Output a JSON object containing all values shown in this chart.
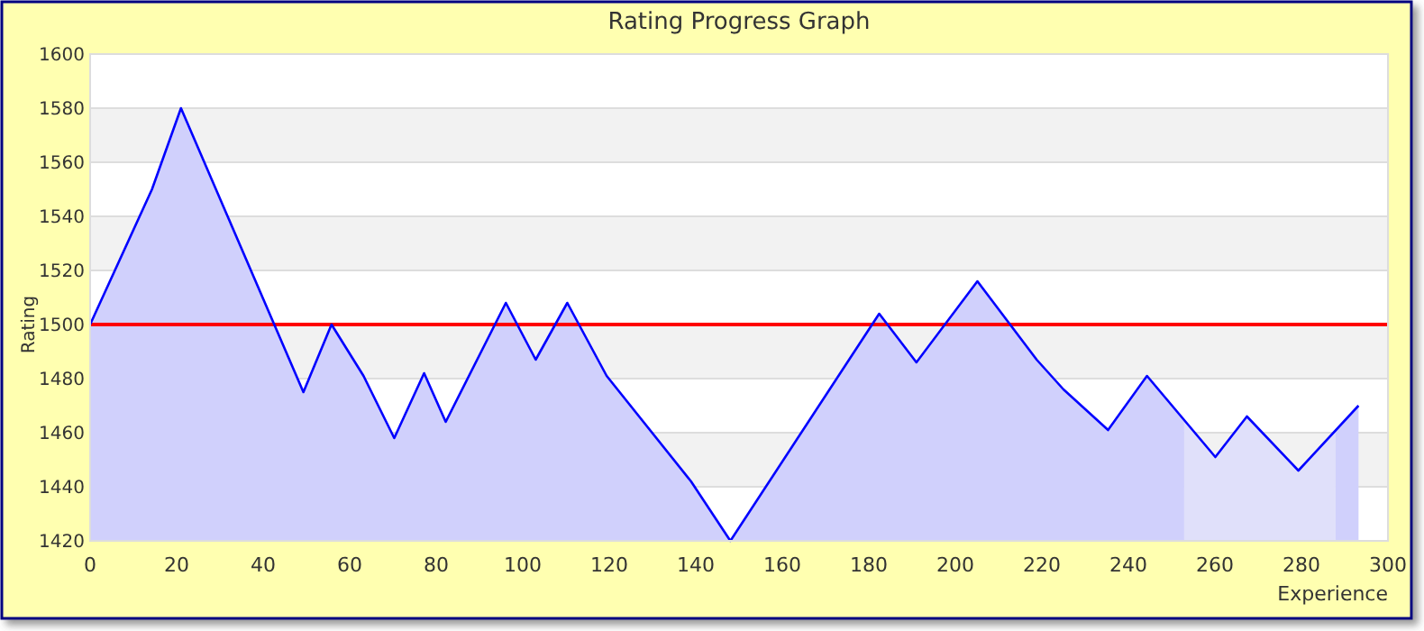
{
  "chart_data": {
    "type": "area",
    "title": "Rating Progress Graph",
    "xlabel": "Experience",
    "ylabel": "Rating",
    "xlim": [
      0,
      300
    ],
    "xticks": [
      0,
      20,
      40,
      60,
      80,
      100,
      120,
      140,
      160,
      180,
      200,
      220,
      240,
      260,
      280,
      300
    ],
    "ylim": [
      1420,
      1600
    ],
    "yticks": [
      1420,
      1440,
      1460,
      1480,
      1500,
      1520,
      1540,
      1560,
      1580,
      1600
    ],
    "grid": "y",
    "ref_lines": [
      {
        "axis": "y",
        "value": 1500,
        "color": "#ff0000"
      }
    ],
    "series": [
      {
        "color": "#d0d0fc",
        "x": [
          0,
          14.3,
          21,
          49.3,
          55.8,
          63.2,
          70.3,
          77.2,
          82.2,
          96.1,
          103,
          110.3,
          119.4,
          138.9,
          148,
          182.4,
          191,
          205.1,
          218.8,
          225,
          235.3,
          244.3,
          252.9
        ],
        "values": [
          1500,
          1550,
          1580,
          1475,
          1500,
          1481,
          1458,
          1482,
          1464,
          1508,
          1487,
          1508,
          1481,
          1442,
          1420,
          1504,
          1486,
          1516,
          1487,
          1476,
          1461,
          1481,
          1465
        ]
      },
      {
        "color": "#e0e0fa",
        "x": [
          252.9,
          260.1,
          267.4,
          279.3,
          287.9
        ],
        "values": [
          1465,
          1451,
          1466,
          1446,
          1461
        ]
      },
      {
        "color": "#d0d0fc",
        "x": [
          287.9,
          293.2
        ],
        "values": [
          1461,
          1470
        ]
      },
      {
        "type": "line",
        "color": "#0000ff",
        "x": [
          0,
          14.3,
          21,
          49.3,
          55.8,
          63.2,
          70.3,
          77.2,
          82.2,
          96.1,
          103,
          110.3,
          119.4,
          138.9,
          148,
          182.4,
          191,
          205.1,
          218.8,
          225,
          235.3,
          244.3,
          260.1,
          267.4,
          279.3,
          293.2
        ],
        "values": [
          1500,
          1550,
          1580,
          1475,
          1500,
          1481,
          1458,
          1482,
          1464,
          1508,
          1487,
          1508,
          1481,
          1442,
          1420,
          1504,
          1486,
          1516,
          1487,
          1476,
          1461,
          1481,
          1451,
          1466,
          1446,
          1470
        ]
      }
    ]
  }
}
